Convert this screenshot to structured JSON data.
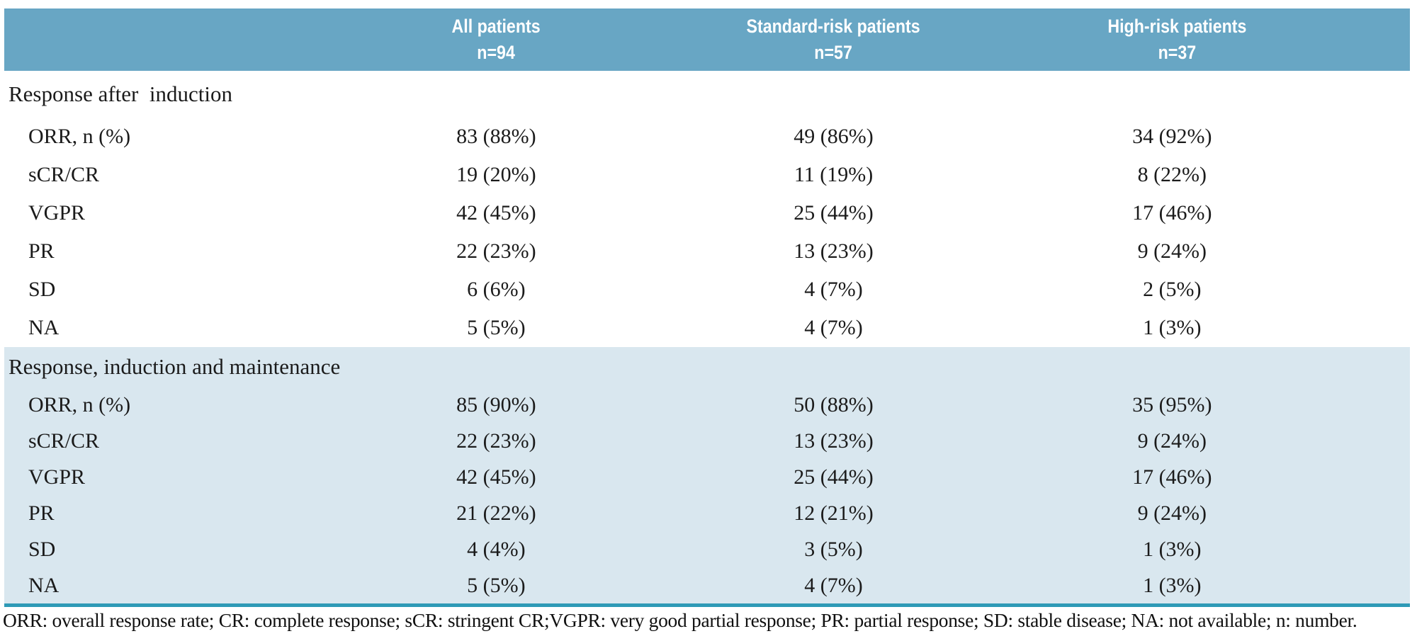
{
  "table": {
    "colors": {
      "header_bg": "#68a6c4",
      "band_bg": "#d9e7ef",
      "rule": "#2e9ab6"
    },
    "columns": [
      {
        "line1": "All patients",
        "line2": "n=94"
      },
      {
        "line1": "Standard-risk patients",
        "line2": "n=57"
      },
      {
        "line1": "High-risk patients",
        "line2": "n=37"
      }
    ],
    "sections": [
      {
        "title": "Response after  induction",
        "rows": [
          {
            "label": "ORR, n (%)",
            "values": [
              "83 (88%)",
              "49 (86%)",
              "34 (92%)"
            ]
          },
          {
            "label": "sCR/CR",
            "values": [
              "19 (20%)",
              "11 (19%)",
              "8 (22%)"
            ]
          },
          {
            "label": "VGPR",
            "values": [
              "42 (45%)",
              "25 (44%)",
              "17 (46%)"
            ]
          },
          {
            "label": "PR",
            "values": [
              "22 (23%)",
              "13 (23%)",
              "9 (24%)"
            ]
          },
          {
            "label": "SD",
            "values": [
              "6 (6%)",
              "4 (7%)",
              "2 (5%)"
            ]
          },
          {
            "label": "NA",
            "values": [
              "5 (5%)",
              "4 (7%)",
              "1 (3%)"
            ]
          }
        ]
      },
      {
        "title": "Response, induction and maintenance",
        "rows": [
          {
            "label": "ORR, n (%)",
            "values": [
              "85 (90%)",
              "50 (88%)",
              "35 (95%)"
            ]
          },
          {
            "label": "sCR/CR",
            "values": [
              "22 (23%)",
              "13 (23%)",
              "9 (24%)"
            ]
          },
          {
            "label": "VGPR",
            "values": [
              "42 (45%)",
              "25 (44%)",
              "17 (46%)"
            ]
          },
          {
            "label": "PR",
            "values": [
              "21 (22%)",
              "12 (21%)",
              "9 (24%)"
            ]
          },
          {
            "label": "SD",
            "values": [
              "4 (4%)",
              "3 (5%)",
              "1 (3%)"
            ]
          },
          {
            "label": "NA",
            "values": [
              "5 (5%)",
              "4 (7%)",
              "1 (3%)"
            ]
          }
        ]
      }
    ],
    "footnote": "ORR: overall response rate; CR: complete response; sCR: stringent CR;VGPR: very good partial response; PR: partial response; SD: stable disease; NA: not available; n: number."
  }
}
